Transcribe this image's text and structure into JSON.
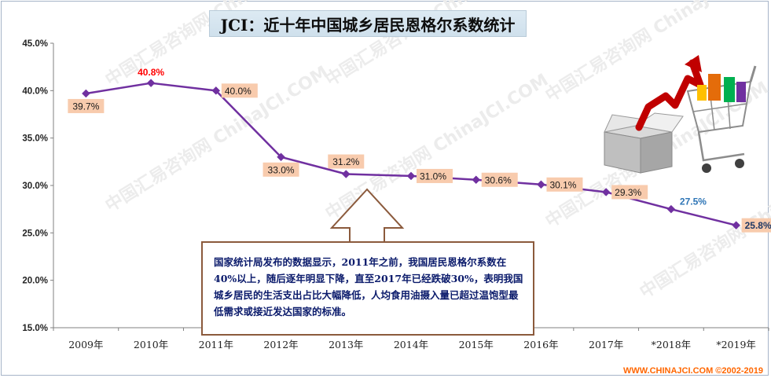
{
  "title": "JCI：近十年中国城乡居民恩格尔系数统计",
  "footer": "WWW.CHINAJCI.COM ©2002-2019",
  "watermark": "中国汇易咨询网 ChinaJCI.COM",
  "note": "国家统计局发布的数据显示，2011年之前，我国居民恩格尔系数在40%以上，随后逐年明显下降，直至2017年已经跌破30%，表明我国城乡居民的生活支出占比大幅降低，人均食用油摄入量已超过温饱型最低需求或接近发达国家的标准。",
  "colors": {
    "line": "#7030a0",
    "label_bg": "#f8cbad",
    "highlight_red": "#ff0000",
    "forecast_blue": "#2e75b6",
    "final_navy": "#1f3864",
    "note_border": "#8b5a3c",
    "note_text": "#0a1a6b"
  },
  "chart_data": {
    "type": "line",
    "title": "JCI：近十年中国城乡居民恩格尔系数统计",
    "xlabel": "",
    "ylabel": "",
    "categories": [
      "2009年",
      "2010年",
      "2011年",
      "2012年",
      "2013年",
      "2014年",
      "2015年",
      "2016年",
      "2017年",
      "*2018年",
      "*2019年"
    ],
    "values": [
      39.7,
      40.8,
      40.0,
      33.0,
      31.2,
      31.0,
      30.6,
      30.1,
      29.3,
      27.5,
      25.8
    ],
    "data_labels": [
      "39.7%",
      "40.8%",
      "40.0%",
      "33.0%",
      "31.2%",
      "31.0%",
      "30.6%",
      "30.1%",
      "29.3%",
      "27.5%",
      "25.8%"
    ],
    "ylim": [
      15,
      45
    ],
    "yticks": [
      15,
      20,
      25,
      30,
      35,
      40,
      45
    ],
    "ytick_labels": [
      "15.0%",
      "20.0%",
      "25.0%",
      "30.0%",
      "35.0%",
      "40.0%",
      "45.0%"
    ],
    "grid": false,
    "legend": "none",
    "marker": "diamond"
  }
}
